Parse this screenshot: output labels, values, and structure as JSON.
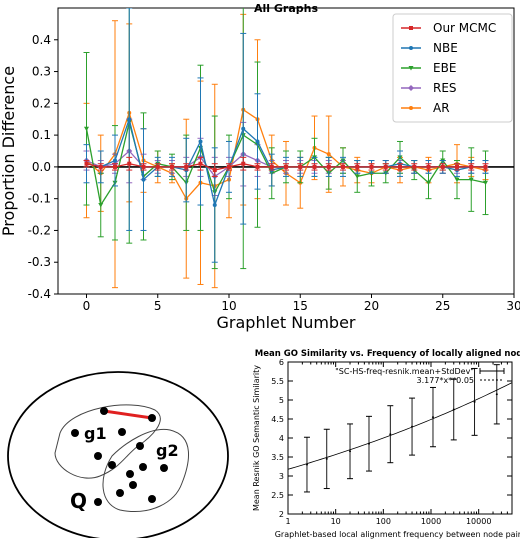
{
  "chart_data": [
    {
      "type": "line",
      "title": "All Graphs",
      "xlabel": "Graphlet Number",
      "ylabel": "Proportion Difference",
      "xlim": [
        -2,
        30
      ],
      "ylim": [
        -0.4,
        0.5
      ],
      "xticks": [
        0,
        5,
        10,
        15,
        20,
        25,
        30
      ],
      "yticks": [
        -0.4,
        -0.3,
        -0.2,
        -0.1,
        0.0,
        0.1,
        0.2,
        0.3,
        0.4
      ],
      "x": [
        0,
        1,
        2,
        3,
        4,
        5,
        6,
        7,
        8,
        9,
        10,
        11,
        12,
        13,
        14,
        15,
        16,
        17,
        18,
        19,
        20,
        21,
        22,
        23,
        24,
        25,
        26,
        27,
        28
      ],
      "legend_position": "top-right",
      "zero_line": true,
      "series": [
        {
          "name": "Our MCMC",
          "color": "#d62728",
          "marker": "square",
          "values": [
            0.01,
            0,
            0,
            0.01,
            0,
            0,
            0,
            0,
            0.01,
            -0.01,
            0,
            0.01,
            0,
            0,
            0,
            0,
            0,
            0,
            0,
            0,
            0,
            0,
            0,
            0,
            0,
            0,
            0,
            0,
            0
          ],
          "err": [
            0.01,
            0.01,
            0.01,
            0.02,
            0.01,
            0.01,
            0.01,
            0.01,
            0.02,
            0.02,
            0.01,
            0.02,
            0.01,
            0.01,
            0.01,
            0.01,
            0.01,
            0.01,
            0.01,
            0.01,
            0.01,
            0.01,
            0.01,
            0.01,
            0.01,
            0.01,
            0.01,
            0.01,
            0.01
          ]
        },
        {
          "name": "NBE",
          "color": "#1f77b4",
          "marker": "circle",
          "values": [
            0.01,
            0,
            0.02,
            0.15,
            -0.04,
            0,
            0,
            -0.01,
            0.08,
            -0.12,
            0,
            0.12,
            0.08,
            -0.01,
            0,
            0,
            0,
            0,
            0,
            0,
            0,
            0,
            0.01,
            0,
            0,
            0,
            -0.01,
            0,
            0
          ],
          "err": [
            0.06,
            0.05,
            0.08,
            0.35,
            0.16,
            0.03,
            0.03,
            0.1,
            0.2,
            0.18,
            0.08,
            0.3,
            0.15,
            0.05,
            0.03,
            0.03,
            0.03,
            0.03,
            0.03,
            0.02,
            0.02,
            0.02,
            0.04,
            0.02,
            0.02,
            0.02,
            0.02,
            0.02,
            0.02
          ]
        },
        {
          "name": "EBE",
          "color": "#2ca02c",
          "marker": "triangle",
          "values": [
            0.12,
            -0.12,
            -0.05,
            0.14,
            -0.03,
            0.01,
            0,
            -0.05,
            0.06,
            -0.08,
            0,
            0.1,
            0.07,
            -0.02,
            0,
            0,
            0.03,
            -0.02,
            0.02,
            -0.03,
            -0.02,
            -0.02,
            0.03,
            -0.01,
            -0.05,
            0.02,
            -0.04,
            -0.04,
            -0.05
          ],
          "err": [
            0.24,
            0.1,
            0.18,
            0.38,
            0.2,
            0.04,
            0.04,
            0.15,
            0.26,
            0.24,
            0.1,
            0.42,
            0.26,
            0.08,
            0.05,
            0.05,
            0.06,
            0.05,
            0.04,
            0.05,
            0.04,
            0.03,
            0.05,
            0.03,
            0.05,
            0.03,
            0.06,
            0.1,
            0.1
          ]
        },
        {
          "name": "RES",
          "color": "#9467bd",
          "marker": "diamond",
          "values": [
            0.02,
            0,
            0.01,
            0.05,
            0,
            0,
            0,
            0,
            0.03,
            -0.03,
            0,
            0.04,
            0.02,
            0,
            0,
            0,
            0,
            0,
            0,
            0,
            0,
            0,
            0,
            0,
            0,
            0,
            0,
            0,
            0
          ],
          "err": [
            0.03,
            0.02,
            0.03,
            0.1,
            0.04,
            0.02,
            0.02,
            0.03,
            0.06,
            0.06,
            0.03,
            0.1,
            0.05,
            0.02,
            0.02,
            0.02,
            0.02,
            0.02,
            0.02,
            0.02,
            0.02,
            0.02,
            0.02,
            0.02,
            0.02,
            0.02,
            0.02,
            0.02,
            0.02
          ]
        },
        {
          "name": "AR",
          "color": "#ff7f0e",
          "marker": "circle",
          "values": [
            0.02,
            -0.02,
            0.04,
            0.17,
            0.02,
            0,
            -0.02,
            -0.1,
            -0.05,
            -0.06,
            -0.04,
            0.18,
            0.15,
            0.02,
            -0.02,
            -0.05,
            0.06,
            0.04,
            0,
            -0.01,
            -0.02,
            0,
            -0.01,
            0,
            -0.01,
            0,
            0.01,
            0,
            -0.01
          ],
          "err": [
            0.18,
            0.12,
            0.42,
            0.28,
            0.1,
            0.05,
            0.03,
            0.25,
            0.32,
            0.32,
            0.12,
            0.3,
            0.25,
            0.08,
            0.1,
            0.08,
            0.1,
            0.12,
            0.06,
            0.04,
            0.03,
            0.02,
            0.04,
            0.02,
            0.04,
            0.02,
            0.06,
            0.03,
            0.03
          ]
        }
      ]
    },
    {
      "type": "line",
      "title": "Mean GO Similarity vs. Frequency of locally aligned nodes",
      "xlabel": "Graphlet-based local alignment frequency between node pairs",
      "ylabel": "Mean Resnik GO Semantic Similarity",
      "xscale": "log",
      "xlim": [
        1,
        50000
      ],
      "ylim": [
        2,
        6
      ],
      "xticks": [
        1,
        10,
        100,
        1000,
        10000
      ],
      "xtick_labels": [
        "1",
        "10",
        "100",
        "1000",
        "10000"
      ],
      "yticks": [
        2,
        2.5,
        3,
        3.5,
        4,
        4.5,
        5,
        5.5,
        6
      ],
      "yticks_labels": [
        "2",
        "2.5",
        "3",
        "3.5",
        "4",
        "4.5",
        "5",
        "5.5",
        "6"
      ],
      "xticks_minor": [
        2,
        3,
        4,
        5,
        6,
        7,
        8,
        9,
        20,
        30,
        40,
        50,
        60,
        70,
        80,
        90,
        200,
        300,
        400,
        500,
        600,
        700,
        800,
        900,
        2000,
        3000,
        4000,
        5000,
        6000,
        7000,
        8000,
        9000,
        20000,
        30000,
        40000
      ],
      "legend_position": "top-right",
      "series": [
        {
          "name": "\"SC-HS-freq-resnik.mean+StdDev\"",
          "style": "errorbars",
          "x": [
            2.5,
            6.5,
            20,
            50,
            140,
            400,
            1100,
            3000,
            8200,
            24000
          ],
          "values": [
            3.3,
            3.45,
            3.65,
            3.85,
            4.1,
            4.3,
            4.55,
            4.75,
            4.95,
            5.15
          ],
          "err": [
            0.72,
            0.78,
            0.72,
            0.72,
            0.75,
            0.75,
            0.78,
            0.8,
            0.88,
            0.78
          ]
        },
        {
          "name": "3.177*x**0.05",
          "style": "dashed-fit",
          "coef": 3.177,
          "exponent": 0.05
        }
      ]
    }
  ],
  "diagram": {
    "labels": {
      "g1": "g1",
      "g2": "g2",
      "q": "Q"
    },
    "edge_color": "#e02020"
  }
}
